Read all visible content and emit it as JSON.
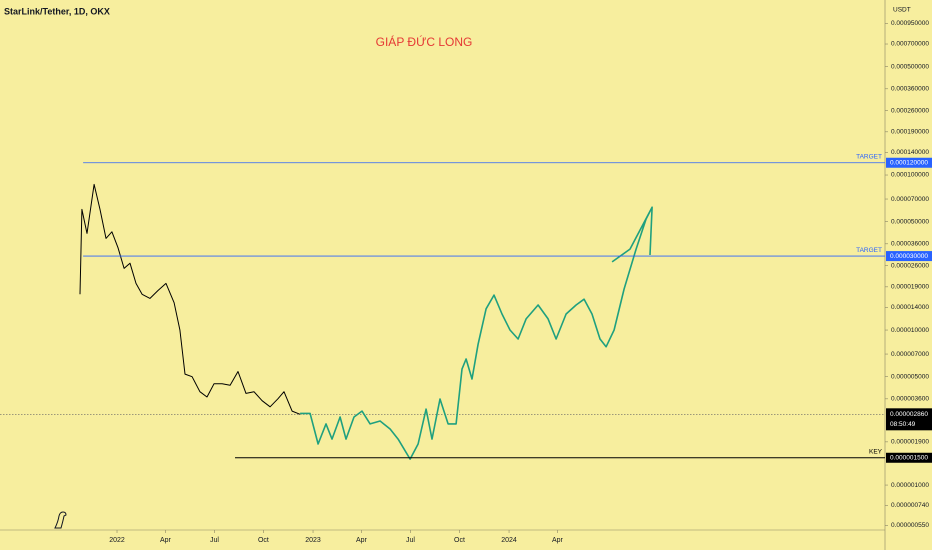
{
  "chart_data": {
    "type": "line",
    "title": "StarLink/Tether, 1D, OKX",
    "annotation": "GIÁP ĐỨC LONG",
    "y_unit": "USDT",
    "log_scale": true,
    "grid": false,
    "background": "#f7ee9e",
    "ylim": [
      5.13e-07,
      0.001346
    ],
    "yticks": [
      {
        "value": 0.00095,
        "label": "0.000950000"
      },
      {
        "value": 0.0007,
        "label": "0.000700000"
      },
      {
        "value": 0.0005,
        "label": "0.000500000"
      },
      {
        "value": 0.00036,
        "label": "0.000360000"
      },
      {
        "value": 0.00026,
        "label": "0.000260000"
      },
      {
        "value": 0.00019,
        "label": "0.000190000"
      },
      {
        "value": 0.00014,
        "label": "0.000140000"
      },
      {
        "value": 0.0001,
        "label": "0.000100000"
      },
      {
        "value": 7e-05,
        "label": "0.000070000"
      },
      {
        "value": 5e-05,
        "label": "0.000050000"
      },
      {
        "value": 3.6e-05,
        "label": "0.000036000"
      },
      {
        "value": 2.6e-05,
        "label": "0.000026000"
      },
      {
        "value": 1.9e-05,
        "label": "0.000019000"
      },
      {
        "value": 1.4e-05,
        "label": "0.000014000"
      },
      {
        "value": 1e-05,
        "label": "0.000010000"
      },
      {
        "value": 7e-06,
        "label": "0.000007000"
      },
      {
        "value": 5e-06,
        "label": "0.000005000"
      },
      {
        "value": 3.6e-06,
        "label": "0.000003600"
      },
      {
        "value": 1.9e-06,
        "label": "0.000001900"
      },
      {
        "value": 1e-06,
        "label": "0.000001000"
      },
      {
        "value": 7.4e-07,
        "label": "0.000000740"
      },
      {
        "value": 5.5e-07,
        "label": "0.000000550"
      }
    ],
    "xlim": [
      2021.403,
      2025.918
    ],
    "xticks": [
      {
        "value": 2022.0,
        "label": "2022"
      },
      {
        "value": 2022.247,
        "label": "Apr"
      },
      {
        "value": 2022.497,
        "label": "Jul"
      },
      {
        "value": 2022.747,
        "label": "Oct"
      },
      {
        "value": 2023.0,
        "label": "2023"
      },
      {
        "value": 2023.247,
        "label": "Apr"
      },
      {
        "value": 2023.497,
        "label": "Jul"
      },
      {
        "value": 2023.747,
        "label": "Oct"
      },
      {
        "value": 2024.0,
        "label": "2024"
      },
      {
        "value": 2024.247,
        "label": "Apr"
      }
    ],
    "series": [
      {
        "color": "#000000",
        "x": [
          2021.811,
          2021.821,
          2021.847,
          2021.883,
          2021.913,
          2021.944,
          2021.974,
          2022.005,
          2022.036,
          2022.066,
          2022.097,
          2022.128,
          2022.168,
          2022.209,
          2022.25,
          2022.291,
          2022.321,
          2022.347,
          2022.383,
          2022.423,
          2022.459,
          2022.495,
          2022.536,
          2022.577,
          2022.617,
          2022.658,
          2022.699,
          2022.74,
          2022.781,
          2022.821,
          2022.852,
          2022.893,
          2022.934
        ],
        "values": [
          1.7e-05,
          6e-05,
          4.2e-05,
          8.7e-05,
          6e-05,
          3.9e-05,
          4.3e-05,
          3.4e-05,
          2.5e-05,
          2.7e-05,
          2e-05,
          1.7e-05,
          1.6e-05,
          1.8e-05,
          2e-05,
          1.5e-05,
          1e-05,
          5.2e-06,
          5e-06,
          4e-06,
          3.7e-06,
          4.5e-06,
          4.5e-06,
          4.4e-06,
          5.4e-06,
          3.9e-06,
          4e-06,
          3.5e-06,
          3.2e-06,
          3.6e-06,
          4e-06,
          3e-06,
          2.86e-06
        ]
      },
      {
        "color": "#1fa07f",
        "x": [
          2022.934,
          2022.985,
          2023.026,
          2023.066,
          2023.097,
          2023.138,
          2023.168,
          2023.209,
          2023.25,
          2023.291,
          2023.342,
          2023.393,
          2023.434,
          2023.464,
          2023.495,
          2023.536,
          2023.577,
          2023.607,
          2023.648,
          2023.689,
          2023.73,
          2023.76,
          2023.781,
          2023.811,
          2023.842,
          2023.883,
          2023.923,
          2023.964,
          2024.005,
          2024.046,
          2024.087,
          2024.148,
          2024.199,
          2024.24,
          2024.291,
          2024.342,
          2024.383,
          2024.423,
          2024.464,
          2024.495,
          2024.536,
          2024.587,
          2024.648,
          2024.699,
          2024.73,
          2024.719,
          null,
          2024.526,
          2024.617,
          2024.73
        ],
        "values": [
          2.9e-06,
          2.9e-06,
          1.84e-06,
          2.48e-06,
          1.98e-06,
          2.75e-06,
          1.98e-06,
          2.75e-06,
          3e-06,
          2.48e-06,
          2.59e-06,
          2.3e-06,
          1.98e-06,
          1.71e-06,
          1.47e-06,
          1.84e-06,
          3.09e-06,
          1.98e-06,
          3.59e-06,
          2.48e-06,
          2.48e-06,
          5.6e-06,
          6.5e-06,
          4.83e-06,
          8.1e-06,
          1.37e-05,
          1.68e-05,
          1.27e-05,
          1e-05,
          8.75e-06,
          1.18e-05,
          1.45e-05,
          1.18e-05,
          8.75e-06,
          1.27e-05,
          1.45e-05,
          1.58e-05,
          1.27e-05,
          8.75e-06,
          7.8e-06,
          1e-05,
          1.84e-05,
          3.33e-05,
          5.2e-05,
          6.2e-05,
          3.05e-05,
          null,
          2.75e-05,
          3.33e-05,
          6.2e-05
        ]
      }
    ],
    "levels": [
      {
        "label": "TARGET",
        "value": 0.00012,
        "value_label": "0.000120000",
        "color": "#2962ff",
        "x_start": 2021.827
      },
      {
        "label": "TARGET",
        "value": 3e-05,
        "value_label": "0.000030000",
        "color": "#2962ff",
        "x_start": 2021.827
      },
      {
        "label": "KEY",
        "value": 1.5e-06,
        "value_label": "0.000001500",
        "color": "#000000",
        "x_start": 2022.602
      }
    ],
    "last_price": {
      "value": 2.86e-06,
      "value_label": "0.000002860",
      "countdown": "08:50:49",
      "color": "#000000"
    }
  }
}
